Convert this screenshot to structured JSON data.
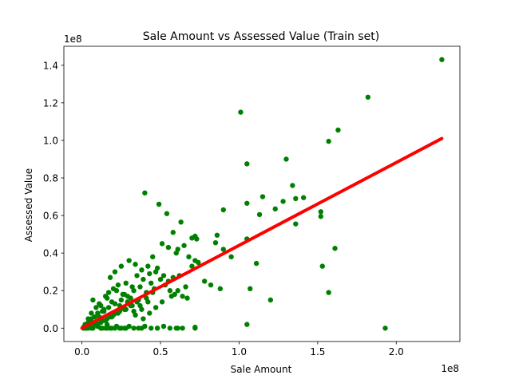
{
  "chart_data": {
    "type": "scatter",
    "title": "Sale Amount vs Assessed Value (Train set)",
    "xlabel": "Sale Amount",
    "ylabel": "Assessed Value",
    "x_offset_label": "1e8",
    "y_offset_label": "1e8",
    "xlim": [
      -0.115,
      2.405
    ],
    "ylim": [
      -0.071,
      1.501
    ],
    "x_ticks": [
      0.0,
      0.5,
      1.0,
      1.5,
      2.0
    ],
    "x_tick_labels": [
      "0.0",
      "0.5",
      "1.0",
      "1.5",
      "2.0"
    ],
    "y_ticks": [
      0.0,
      0.2,
      0.4,
      0.6,
      0.8,
      1.0,
      1.2,
      1.4
    ],
    "y_tick_labels": [
      "0.0",
      "0.2",
      "0.4",
      "0.6",
      "0.8",
      "1.0",
      "1.2",
      "1.4"
    ],
    "grid": false,
    "colors": {
      "points": "#008000",
      "fit_line": "#ff0000"
    },
    "series": [
      {
        "kind": "points",
        "x": [
          2.29,
          1.82,
          1.63,
          1.57,
          1.01,
          1.05,
          1.3,
          1.34,
          1.36,
          1.41,
          1.52,
          1.52,
          1.36,
          1.15,
          1.23,
          1.28,
          1.13,
          0.9,
          1.05,
          1.05,
          1.11,
          1.53,
          1.61,
          1.57,
          1.2,
          1.05,
          1.07,
          0.4,
          0.49,
          0.54,
          0.63,
          0.58,
          0.72,
          0.7,
          0.73,
          0.86,
          0.85,
          0.9,
          0.95,
          0.78,
          0.82,
          0.88,
          0.65,
          0.61,
          0.55,
          0.51,
          0.6,
          0.68,
          0.72,
          0.74,
          0.7,
          0.62,
          0.58,
          0.45,
          0.38,
          0.42,
          0.47,
          0.52,
          0.48,
          0.43,
          0.55,
          0.66,
          0.34,
          0.3,
          0.25,
          0.21,
          0.18,
          0.35,
          0.39,
          0.28,
          0.32,
          0.22,
          0.26,
          0.16,
          0.19,
          0.12,
          0.14,
          0.1,
          0.08,
          0.06,
          0.05,
          0.04,
          0.03,
          0.02,
          0.01,
          0.07,
          0.09,
          0.11,
          0.13,
          0.15,
          0.17,
          0.2,
          0.23,
          0.24,
          0.27,
          0.29,
          0.31,
          0.33,
          0.36,
          0.37,
          0.41,
          0.44,
          0.46,
          0.5,
          0.53,
          0.56,
          0.59,
          0.64,
          0.67,
          0.08,
          0.12,
          0.16,
          0.2,
          0.24,
          0.28,
          0.32,
          0.05,
          0.1,
          0.15,
          0.18,
          0.22,
          0.26,
          0.3,
          0.34,
          0.38,
          0.42,
          0.02,
          0.04,
          0.06,
          0.09,
          0.11,
          0.14,
          0.17,
          0.21,
          0.25,
          0.29,
          0.33,
          0.37,
          0.41,
          0.45,
          0.13,
          0.19,
          0.23,
          0.27,
          0.31,
          0.35,
          0.39,
          0.43,
          0.47,
          0.51,
          0.57,
          0.61,
          0.03,
          0.07,
          0.1,
          0.13,
          0.16,
          0.19,
          0.22,
          0.25,
          0.12,
          0.15,
          0.18,
          0.21,
          0.24,
          0.27,
          0.3,
          0.33,
          0.36,
          0.4,
          0.44,
          0.48,
          0.52,
          0.56,
          0.6,
          0.64,
          0.72,
          0.72,
          0.61,
          0.48,
          0.38,
          0.28,
          0.16,
          0.02,
          0.01,
          0.04,
          0.06,
          1.93
        ],
        "y": [
          1.43,
          1.23,
          1.055,
          0.995,
          1.15,
          0.875,
          0.9,
          0.76,
          0.69,
          0.695,
          0.62,
          0.595,
          0.555,
          0.7,
          0.635,
          0.675,
          0.605,
          0.63,
          0.665,
          0.475,
          0.345,
          0.33,
          0.425,
          0.19,
          0.15,
          0.02,
          0.21,
          0.72,
          0.66,
          0.61,
          0.565,
          0.51,
          0.49,
          0.48,
          0.475,
          0.495,
          0.455,
          0.42,
          0.38,
          0.25,
          0.23,
          0.21,
          0.44,
          0.42,
          0.43,
          0.45,
          0.4,
          0.38,
          0.36,
          0.35,
          0.33,
          0.28,
          0.27,
          0.38,
          0.31,
          0.33,
          0.3,
          0.28,
          0.32,
          0.29,
          0.25,
          0.22,
          0.34,
          0.36,
          0.33,
          0.3,
          0.27,
          0.28,
          0.26,
          0.24,
          0.22,
          0.2,
          0.18,
          0.16,
          0.14,
          0.12,
          0.1,
          0.08,
          0.06,
          0.05,
          0.04,
          0.03,
          0.02,
          0.01,
          0.005,
          0.15,
          0.11,
          0.13,
          0.09,
          0.17,
          0.19,
          0.21,
          0.23,
          0.12,
          0.18,
          0.14,
          0.16,
          0.2,
          0.15,
          0.22,
          0.19,
          0.24,
          0.21,
          0.26,
          0.23,
          0.2,
          0.18,
          0.17,
          0.16,
          0.02,
          0.03,
          0.05,
          0.07,
          0.09,
          0.1,
          0.12,
          0.01,
          0.02,
          0.04,
          0.06,
          0.08,
          0.11,
          0.13,
          0.07,
          0.1,
          0.14,
          0.02,
          0.05,
          0.08,
          0.03,
          0.06,
          0.09,
          0.11,
          0.13,
          0.15,
          0.17,
          0.09,
          0.12,
          0.16,
          0.19,
          0.04,
          0.06,
          0.08,
          0.1,
          0.12,
          0.14,
          0.05,
          0.08,
          0.11,
          0.14,
          0.17,
          0.2,
          0.0,
          0.0,
          0.01,
          0.0,
          0.02,
          0.0,
          0.01,
          0.0,
          0.0,
          0.0,
          0.0,
          0.0,
          0.0,
          0.0,
          0.01,
          0.0,
          0.0,
          0.01,
          0.0,
          0.0,
          0.01,
          0.0,
          0.0,
          0.0,
          0.0,
          0.005,
          0.0,
          0.0,
          0.0,
          0.0,
          0.0,
          0.0,
          0.0,
          0.0,
          0.0,
          0.0
        ]
      },
      {
        "kind": "fit_line",
        "x": [
          0.0,
          2.29
        ],
        "y": [
          0.0,
          1.01
        ]
      }
    ]
  }
}
